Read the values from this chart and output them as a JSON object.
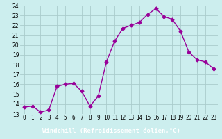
{
  "x": [
    0,
    1,
    2,
    3,
    4,
    5,
    6,
    7,
    8,
    9,
    10,
    11,
    12,
    13,
    14,
    15,
    16,
    17,
    18,
    19,
    20,
    21,
    22,
    23
  ],
  "y": [
    13.7,
    13.8,
    13.2,
    13.4,
    15.8,
    16.0,
    16.1,
    15.3,
    13.8,
    14.8,
    18.3,
    20.4,
    21.7,
    22.0,
    22.3,
    23.1,
    23.7,
    22.9,
    22.6,
    21.4,
    19.3,
    18.5,
    18.3,
    17.6
  ],
  "line_color": "#990099",
  "marker": "D",
  "marker_size": 2.5,
  "bg_color": "#cceeee",
  "grid_color": "#aacccc",
  "xlabel": "Windchill (Refroidissement éolien,°C)",
  "xlabel_bg": "#800080",
  "xlabel_fg": "#ffffff",
  "ylim": [
    13,
    24
  ],
  "xlim": [
    -0.5,
    23.5
  ],
  "yticks": [
    13,
    14,
    15,
    16,
    17,
    18,
    19,
    20,
    21,
    22,
    23,
    24
  ],
  "xticks": [
    0,
    1,
    2,
    3,
    4,
    5,
    6,
    7,
    8,
    9,
    10,
    11,
    12,
    13,
    14,
    15,
    16,
    17,
    18,
    19,
    20,
    21,
    22,
    23
  ],
  "tick_fontsize": 5.5,
  "line_width": 1.0,
  "xlabel_fontsize": 6.5
}
